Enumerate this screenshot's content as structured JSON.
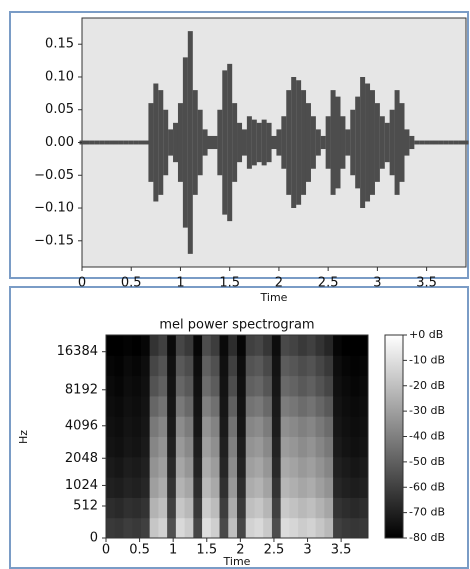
{
  "chart_data": [
    {
      "type": "waveform",
      "xlabel": "Time",
      "color": "#4d4d4d",
      "x": [
        0,
        0.05,
        0.1,
        0.15,
        0.2,
        0.25,
        0.3,
        0.35,
        0.4,
        0.45,
        0.5,
        0.55,
        0.6,
        0.65,
        0.7,
        0.75,
        0.8,
        0.85,
        0.9,
        0.95,
        1.0,
        1.05,
        1.1,
        1.15,
        1.2,
        1.25,
        1.3,
        1.35,
        1.4,
        1.45,
        1.5,
        1.55,
        1.6,
        1.65,
        1.7,
        1.75,
        1.8,
        1.85,
        1.9,
        1.95,
        2.0,
        2.05,
        2.1,
        2.15,
        2.2,
        2.25,
        2.3,
        2.35,
        2.4,
        2.45,
        2.5,
        2.55,
        2.6,
        2.65,
        2.7,
        2.75,
        2.8,
        2.85,
        2.9,
        2.95,
        3.0,
        3.05,
        3.1,
        3.15,
        3.2,
        3.25,
        3.3,
        3.35,
        3.4,
        3.45,
        3.5,
        3.55,
        3.6,
        3.65,
        3.7,
        3.75,
        3.8,
        3.85,
        3.9
      ],
      "values": [
        0.003,
        0.003,
        0.003,
        0.003,
        0.003,
        0.003,
        0.003,
        0.003,
        0.003,
        0.003,
        0.003,
        0.003,
        0.003,
        0.003,
        0.06,
        0.09,
        0.08,
        0.05,
        0.02,
        0.03,
        0.06,
        0.13,
        0.17,
        0.08,
        0.05,
        0.02,
        0.01,
        0.01,
        0.05,
        0.11,
        0.12,
        0.06,
        0.03,
        0.02,
        0.04,
        0.035,
        0.03,
        0.035,
        0.03,
        0.01,
        0.02,
        0.04,
        0.08,
        0.1,
        0.095,
        0.08,
        0.06,
        0.04,
        0.02,
        0.01,
        0.04,
        0.08,
        0.07,
        0.04,
        0.02,
        0.05,
        0.07,
        0.1,
        0.09,
        0.08,
        0.06,
        0.04,
        0.03,
        0.05,
        0.08,
        0.06,
        0.02,
        0.01,
        0.003,
        0.003,
        0.003,
        0.003,
        0.003,
        0.003,
        0.003,
        0.003,
        0.003,
        0.003,
        0.003
      ],
      "xlim": [
        0,
        3.9
      ],
      "xticks": [
        0,
        0.5,
        1,
        1.5,
        2,
        2.5,
        3,
        3.5
      ],
      "ylim": [
        -0.19,
        0.19
      ],
      "yticks": [
        0.15,
        {
          "value": 0.1,
          "label": "0.10"
        },
        0.05,
        {
          "value": 0,
          "label": "0.00"
        },
        {
          "value": -0.05,
          "label": "−0.05"
        },
        {
          "value": -0.1,
          "label": "−0.10"
        },
        {
          "value": -0.15,
          "label": "−0.15"
        }
      ]
    },
    {
      "type": "heatmap",
      "title": "mel power spectrogram",
      "xlabel": "Time",
      "ylabel": "Hz",
      "yscale": "mel",
      "colormap": "gray",
      "xlim": [
        0,
        3.9
      ],
      "xticks": [
        0,
        0.5,
        1,
        1.5,
        2,
        2.5,
        3,
        3.5
      ],
      "ylim": [
        0,
        22050
      ],
      "yticks": [
        0,
        512,
        1024,
        2048,
        4096,
        8192,
        16384
      ],
      "clim": [
        -80,
        0
      ],
      "cticks": [
        {
          "value": 0,
          "label": "+0 dB"
        },
        {
          "value": -10,
          "label": "-10 dB"
        },
        {
          "value": -20,
          "label": "-20 dB"
        },
        {
          "value": -30,
          "label": "-30 dB"
        },
        {
          "value": -40,
          "label": "-40 dB"
        },
        {
          "value": -50,
          "label": "-50 dB"
        },
        {
          "value": -60,
          "label": "-60 dB"
        },
        {
          "value": -70,
          "label": "-70 dB"
        },
        {
          "value": -80,
          "label": "-80 dB"
        }
      ],
      "values": [
        [
          -62,
          -63,
          -61,
          -62,
          -60,
          -18,
          -14,
          -55,
          -12,
          -16,
          -58,
          -10,
          -15,
          -57,
          -20,
          -58,
          -14,
          -12,
          -17,
          -56,
          -11,
          -13,
          -16,
          -14,
          -18,
          -22,
          -60,
          -62,
          -63,
          -62
        ],
        [
          -66,
          -67,
          -65,
          -66,
          -64,
          -24,
          -20,
          -60,
          -18,
          -22,
          -62,
          -16,
          -21,
          -61,
          -26,
          -62,
          -20,
          -18,
          -23,
          -60,
          -17,
          -19,
          -22,
          -20,
          -24,
          -28,
          -64,
          -66,
          -67,
          -66
        ],
        [
          -70,
          -71,
          -69,
          -70,
          -68,
          -30,
          -26,
          -64,
          -24,
          -28,
          -66,
          -22,
          -27,
          -65,
          -32,
          -66,
          -26,
          -24,
          -29,
          -64,
          -23,
          -25,
          -28,
          -26,
          -30,
          -34,
          -68,
          -70,
          -71,
          -70
        ],
        [
          -72,
          -73,
          -71,
          -72,
          -70,
          -34,
          -30,
          -67,
          -28,
          -33,
          -69,
          -26,
          -31,
          -68,
          -36,
          -69,
          -30,
          -28,
          -33,
          -67,
          -27,
          -29,
          -32,
          -30,
          -34,
          -38,
          -70,
          -72,
          -73,
          -72
        ],
        [
          -74,
          -75,
          -73,
          -74,
          -72,
          -38,
          -34,
          -70,
          -32,
          -37,
          -71,
          -30,
          -35,
          -70,
          -40,
          -71,
          -34,
          -32,
          -37,
          -69,
          -31,
          -33,
          -36,
          -34,
          -38,
          -42,
          -72,
          -74,
          -75,
          -74
        ],
        [
          -75,
          -76,
          -74,
          -75,
          -73,
          -42,
          -38,
          -72,
          -36,
          -41,
          -73,
          -34,
          -39,
          -72,
          -44,
          -73,
          -38,
          -36,
          -41,
          -71,
          -35,
          -37,
          -40,
          -38,
          -42,
          -46,
          -73,
          -75,
          -76,
          -75
        ],
        [
          -76,
          -77,
          -75,
          -76,
          -74,
          -48,
          -44,
          -73,
          -42,
          -47,
          -74,
          -40,
          -45,
          -73,
          -50,
          -74,
          -44,
          -42,
          -47,
          -72,
          -41,
          -43,
          -46,
          -44,
          -48,
          -52,
          -74,
          -76,
          -77,
          -76
        ],
        [
          -77,
          -78,
          -76,
          -77,
          -75,
          -54,
          -50,
          -74,
          -48,
          -52,
          -75,
          -46,
          -51,
          -74,
          -56,
          -75,
          -50,
          -48,
          -53,
          -73,
          -47,
          -49,
          -52,
          -50,
          -54,
          -58,
          -75,
          -77,
          -78,
          -77
        ],
        [
          -78,
          -79,
          -77,
          -78,
          -76,
          -58,
          -54,
          -75,
          -52,
          -56,
          -76,
          -50,
          -55,
          -75,
          -60,
          -76,
          -54,
          -52,
          -57,
          -74,
          -51,
          -53,
          -56,
          -54,
          -58,
          -62,
          -76,
          -78,
          -79,
          -78
        ],
        [
          -80,
          -80,
          -79,
          -80,
          -78,
          -64,
          -60,
          -77,
          -58,
          -62,
          -78,
          -56,
          -61,
          -77,
          -66,
          -78,
          -60,
          -58,
          -63,
          -76,
          -57,
          -59,
          -62,
          -60,
          -64,
          -68,
          -78,
          -80,
          -80,
          -80
        ]
      ]
    }
  ]
}
